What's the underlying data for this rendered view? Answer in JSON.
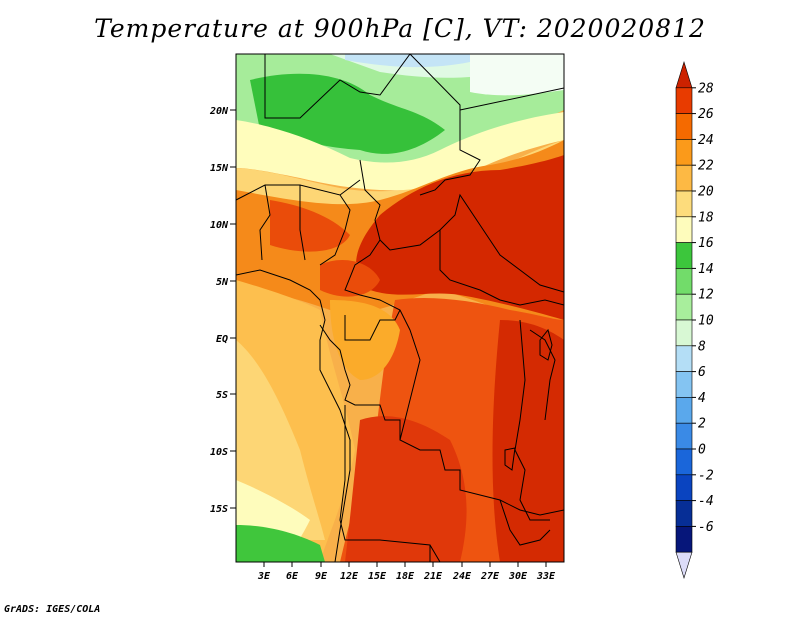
{
  "title": "Temperature at 900hPa [C], VT: 2020020812",
  "credit": "GrADS: IGES/COLA",
  "map": {
    "lon_labels": [
      "3E",
      "6E",
      "9E",
      "12E",
      "15E",
      "18E",
      "21E",
      "24E",
      "27E",
      "30E",
      "33E"
    ],
    "lat_labels": [
      "20N",
      "15N",
      "10N",
      "5N",
      "EQ",
      "5S",
      "10S",
      "15S"
    ]
  },
  "colorbar": {
    "units": "C",
    "levels": [
      "28",
      "26",
      "24",
      "22",
      "20",
      "18",
      "16",
      "14",
      "12",
      "10",
      "8",
      "6",
      "4",
      "2",
      "0",
      "-2",
      "-4",
      "-6"
    ],
    "colors": [
      "#cc2200",
      "#e83b00",
      "#f56a00",
      "#fb9a1a",
      "#fdb944",
      "#fddc7c",
      "#fefcbc",
      "#3cc63c",
      "#72dc6a",
      "#a8ee9c",
      "#d8f8d4",
      "#b4def6",
      "#84c4f2",
      "#5aa8ec",
      "#3a8ae6",
      "#1a66da",
      "#0a44c0",
      "#062e96",
      "#06167a",
      "#dcdcf8"
    ]
  }
}
